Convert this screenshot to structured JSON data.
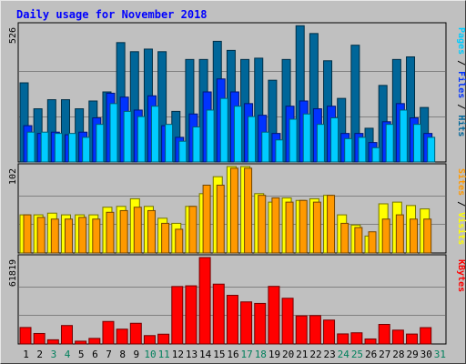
{
  "chart_data": {
    "type": "bar",
    "title": "Daily usage for November 2018",
    "categories": [
      "1",
      "2",
      "3",
      "4",
      "5",
      "6",
      "7",
      "8",
      "9",
      "10",
      "11",
      "12",
      "13",
      "14",
      "15",
      "16",
      "17",
      "18",
      "19",
      "20",
      "21",
      "22",
      "23",
      "24",
      "25",
      "26",
      "27",
      "28",
      "29",
      "30",
      "31"
    ],
    "weekend_days": [
      "3",
      "4",
      "10",
      "11",
      "17",
      "18",
      "24",
      "25",
      "31"
    ],
    "panels": [
      {
        "id": "hits-files-pages",
        "ymax_label": "526",
        "ymax": 526,
        "right_labels": [
          "Pages",
          "Files",
          "Hits"
        ],
        "series": [
          {
            "name": "Hits",
            "color": "#006699",
            "values": [
              305,
              205,
              240,
              240,
              205,
              235,
              270,
              460,
              425,
              435,
              425,
              195,
              395,
              395,
              465,
              430,
              395,
              400,
              315,
              395,
              525,
              495,
              390,
              245,
              450,
              130,
              295,
              395,
              405,
              210,
              0
            ]
          },
          {
            "name": "Files",
            "color": "#0033ff",
            "values": [
              140,
              110,
              115,
              105,
              115,
              170,
              265,
              250,
              200,
              255,
              140,
              95,
              185,
              270,
              320,
              270,
              225,
              180,
              110,
              215,
              235,
              205,
              215,
              110,
              110,
              75,
              155,
              225,
              170,
              110,
              0
            ]
          },
          {
            "name": "Pages",
            "color": "#00ccff",
            "values": [
              115,
              115,
              110,
              110,
              95,
              145,
              225,
              195,
              175,
              215,
              145,
              80,
              135,
              200,
              245,
              215,
              175,
              115,
              85,
              165,
              185,
              145,
              170,
              90,
              95,
              55,
              145,
              200,
              145,
              95,
              0
            ]
          }
        ]
      },
      {
        "id": "sites-visits",
        "ymax_label": "102",
        "ymax": 102,
        "right_labels": [
          "Sites",
          "Visits"
        ],
        "series": [
          {
            "name": "Visits",
            "color": "#ffff00",
            "values": [
              45,
              45,
              47,
              45,
              45,
              45,
              54,
              55,
              64,
              55,
              41,
              35,
              55,
              70,
              90,
              102,
              102,
              70,
              60,
              65,
              62,
              64,
              68,
              45,
              33,
              20,
              58,
              60,
              56,
              52,
              0
            ]
          },
          {
            "name": "Sites",
            "color": "#ff9900",
            "values": [
              45,
              42,
              40,
              40,
              42,
              40,
              48,
              50,
              54,
              50,
              35,
              28,
              55,
              80,
              80,
              100,
              100,
              68,
              65,
              60,
              62,
              60,
              68,
              35,
              30,
              25,
              40,
              45,
              40,
              40,
              0
            ]
          }
        ]
      },
      {
        "id": "kbytes",
        "ymax_label": "61819",
        "ymax": 61819,
        "right_labels": [
          "KBytes"
        ],
        "series": [
          {
            "name": "KBytes",
            "color": "#ff0000",
            "values": [
              11800,
              7500,
              3000,
              13200,
              2000,
              4000,
              16100,
              10600,
              14800,
              6000,
              7000,
              41100,
              41600,
              61819,
              42800,
              34800,
              30100,
              29000,
              41200,
              32700,
              20100,
              20300,
              17100,
              7200,
              8000,
              3600,
              14000,
              9900,
              7100,
              11700,
              0
            ]
          }
        ]
      }
    ]
  },
  "colors": {
    "background": "#c0c0c0",
    "title": "#0000ff",
    "weekday_label": "#000000",
    "weekend_label": "#00805c",
    "gridline": "#808080",
    "panel_border": "#000000"
  }
}
